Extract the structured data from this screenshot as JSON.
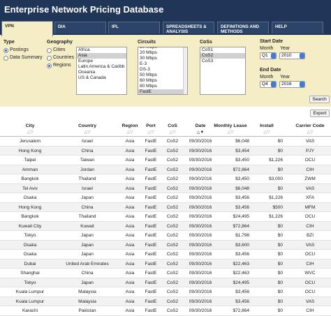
{
  "header": {
    "title": "Enterprise Network Pricing Database"
  },
  "tabs": [
    "VPN",
    "DIA",
    "IPL",
    "SPREADSHEETS & ANALYSIS",
    "DEFINITIONS AND METHODS",
    "HELP"
  ],
  "filters": {
    "type": {
      "label": "Type",
      "options": [
        "Postings",
        "Data Summary"
      ],
      "selected": 0
    },
    "geography": {
      "label": "Geography",
      "options": [
        "Cities",
        "Countries",
        "Regions"
      ],
      "selected": 2,
      "list": [
        "Africa",
        "Asia",
        "Europe",
        "Latin America & Caribb",
        "Oceania",
        "US & Canada"
      ],
      "list_selected": 1
    },
    "circuits": {
      "label": "Circuits",
      "list": [
        "10 Mbps",
        "20 Mbps",
        "30 Mbps",
        "E-3",
        "DS-3",
        "50 Mbps",
        "60 Mbps",
        "80 Mbps",
        "FastE"
      ],
      "list_selected": 8
    },
    "cos": {
      "label": "CoSs",
      "list": [
        "CoS1",
        "CoS2",
        "CoS3"
      ],
      "list_selected": 1
    },
    "start_date": {
      "label": "Start Date",
      "month_label": "Month",
      "month": "Q1",
      "year_label": "Year",
      "year": "2010"
    },
    "end_date": {
      "label": "End Date",
      "month_label": "Month",
      "month": "Q4",
      "year_label": "Year",
      "year": "2016"
    }
  },
  "buttons": {
    "search": "Search",
    "export": "Export"
  },
  "table": {
    "columns": [
      "City",
      "Country",
      "Region",
      "Port",
      "CoS",
      "Date",
      "Monthly Lease",
      "Install",
      "Carrier Code"
    ],
    "rows": [
      [
        "Jerusalem",
        "Israel",
        "Asia",
        "FastE",
        "CoS2",
        "09/30/2016",
        "$6,048",
        "$0",
        "VAS"
      ],
      [
        "Hong Kong",
        "China",
        "Asia",
        "FastE",
        "CoS2",
        "09/30/2016",
        "$3,454",
        "$0",
        "PJY"
      ],
      [
        "Taipei",
        "Taiwan",
        "Asia",
        "FastE",
        "CoS2",
        "09/30/2016",
        "$3,450",
        "$1,226",
        "OCU"
      ],
      [
        "Amman",
        "Jordan",
        "Asia",
        "FastE",
        "CoS2",
        "09/30/2016",
        "$72,864",
        "$0",
        "CIH"
      ],
      [
        "Bangkok",
        "Thailand",
        "Asia",
        "FastE",
        "CoS2",
        "09/30/2016",
        "$3,450",
        "$3,000",
        "ZWM"
      ],
      [
        "Tel Aviv",
        "Israel",
        "Asia",
        "FastE",
        "CoS2",
        "09/30/2016",
        "$6,048",
        "$0",
        "VAS"
      ],
      [
        "Osaka",
        "Japan",
        "Asia",
        "FastE",
        "CoS2",
        "09/30/2016",
        "$3,456",
        "$1,226",
        "XFA"
      ],
      [
        "Hong Kong",
        "China",
        "Asia",
        "FastE",
        "CoS2",
        "09/30/2016",
        "$3,456",
        "$500",
        "MFM"
      ],
      [
        "Bangkok",
        "Thailand",
        "Asia",
        "FastE",
        "CoS2",
        "09/30/2016",
        "$24,495",
        "$1,226",
        "OCU"
      ],
      [
        "Kuwait City",
        "Kuwait",
        "Asia",
        "FastE",
        "CoS2",
        "09/30/2016",
        "$72,864",
        "$0",
        "CIH"
      ],
      [
        "Tokyo",
        "Japan",
        "Asia",
        "FastE",
        "CoS2",
        "09/30/2016",
        "$1,798",
        "$0",
        "BZI"
      ],
      [
        "Osaka",
        "Japan",
        "Asia",
        "FastE",
        "CoS2",
        "09/30/2016",
        "$3,600",
        "$0",
        "VAS"
      ],
      [
        "Osaka",
        "Japan",
        "Asia",
        "FastE",
        "CoS2",
        "09/30/2016",
        "$3,456",
        "$0",
        "OCU"
      ],
      [
        "Dubai",
        "United Arab Emirates",
        "Asia",
        "FastE",
        "CoS2",
        "09/30/2016",
        "$22,463",
        "$0",
        "CIH"
      ],
      [
        "Shanghai",
        "China",
        "Asia",
        "FastE",
        "CoS2",
        "09/30/2016",
        "$22,463",
        "$0",
        "WVC"
      ],
      [
        "Tokyo",
        "Japan",
        "Asia",
        "FastE",
        "CoS2",
        "09/30/2016",
        "$24,495",
        "$0",
        "OCU"
      ],
      [
        "Kuala Lumpur",
        "Malaysia",
        "Asia",
        "FastE",
        "CoS2",
        "09/30/2016",
        "$3,456",
        "$0",
        "OCU"
      ],
      [
        "Kuala Lumpur",
        "Malaysia",
        "Asia",
        "FastE",
        "CoS2",
        "09/30/2016",
        "$3,456",
        "$0",
        "VAS"
      ],
      [
        "Karachi",
        "Pakistan",
        "Asia",
        "FastE",
        "CoS2",
        "09/30/2016",
        "$72,864",
        "$0",
        "CIH"
      ]
    ]
  }
}
